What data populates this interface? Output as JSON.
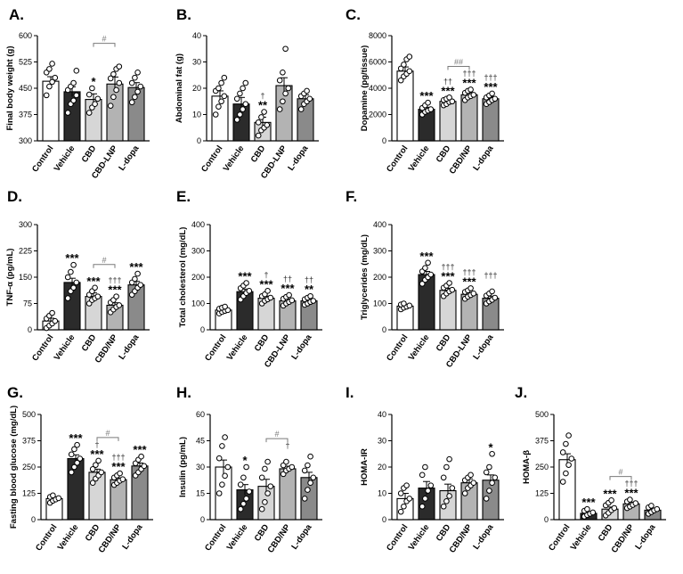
{
  "chart_data": [
    {
      "type": "bar",
      "panel_label": "A.",
      "ylabel": "Final body weight (g)",
      "ylim": [
        300,
        600
      ],
      "yticks": [
        "300",
        "375",
        "450",
        "525",
        "600"
      ],
      "categories": [
        "Control",
        "Vehicle",
        "CBD",
        "CBD-LNP",
        "L-dopa"
      ],
      "values": [
        470,
        440,
        418,
        462,
        452
      ],
      "errors": [
        13,
        14,
        16,
        20,
        14
      ],
      "points": [
        [
          430,
          455,
          468,
          480,
          495,
          505,
          520
        ],
        [
          380,
          405,
          415,
          430,
          445,
          455,
          465,
          500
        ],
        [
          380,
          395,
          405,
          420,
          432,
          450
        ],
        [
          400,
          425,
          445,
          465,
          478,
          490,
          505,
          512
        ],
        [
          410,
          425,
          440,
          455,
          465,
          480,
          495
        ]
      ],
      "annotations": [
        "",
        "",
        "*",
        "",
        ""
      ],
      "brackets": [
        {
          "from": 2,
          "to": 3,
          "label": "#"
        }
      ]
    },
    {
      "type": "bar",
      "panel_label": "B.",
      "ylabel": "Abdominal fat (g)",
      "ylim": [
        0,
        40
      ],
      "yticks": [
        "0",
        "10",
        "20",
        "30",
        "40"
      ],
      "categories": [
        "Control",
        "Vehicle",
        "CBD",
        "CBD-LNP",
        "L-dopa"
      ],
      "values": [
        17,
        14,
        7,
        21,
        16
      ],
      "errors": [
        2,
        2.5,
        2,
        3,
        1.5
      ],
      "points": [
        [
          10,
          13,
          15,
          17,
          19,
          20,
          22,
          24
        ],
        [
          8,
          10,
          12,
          14,
          16,
          18,
          20,
          22
        ],
        [
          2,
          4,
          5,
          6,
          7,
          9,
          11
        ],
        [
          12,
          15,
          18,
          20,
          23,
          26,
          35
        ],
        [
          12,
          14,
          15,
          16,
          17,
          18,
          19
        ]
      ],
      "annotations": [
        "",
        "",
        "**",
        "",
        ""
      ],
      "daggers": [
        "",
        "",
        "†",
        "",
        ""
      ],
      "brackets": []
    },
    {
      "type": "bar",
      "panel_label": "C.",
      "ylabel": "Dopamine (pg/tissue)",
      "ylim": [
        0,
        8000
      ],
      "yticks": [
        "0",
        "2000",
        "4000",
        "6000",
        "8000"
      ],
      "categories": [
        "Control",
        "Vehicle",
        "CBD",
        "CBD/NP",
        "L-dopa"
      ],
      "values": [
        5300,
        2400,
        3000,
        3500,
        3200
      ],
      "errors": [
        320,
        150,
        130,
        180,
        150
      ],
      "points": [
        [
          4600,
          4900,
          5100,
          5300,
          5500,
          5800,
          6200,
          6400
        ],
        [
          2000,
          2200,
          2300,
          2400,
          2500,
          2700,
          2900
        ],
        [
          2700,
          2800,
          2950,
          3000,
          3100,
          3200,
          3300
        ],
        [
          3100,
          3300,
          3400,
          3500,
          3650,
          3800,
          3900
        ],
        [
          2800,
          2950,
          3100,
          3200,
          3300,
          3450,
          3600
        ]
      ],
      "annotations": [
        "",
        "***",
        "***",
        "***",
        "***"
      ],
      "daggers": [
        "",
        "",
        "††",
        "†††",
        "†††"
      ],
      "brackets": [
        {
          "from": 2,
          "to": 3,
          "label": "##"
        }
      ]
    },
    {
      "type": "bar",
      "panel_label": "D.",
      "ylabel": "TNF-α (pg/mL)",
      "ylim": [
        0,
        300
      ],
      "yticks": [
        "0",
        "75",
        "150",
        "225",
        "300"
      ],
      "categories": [
        "Control",
        "Vehicle",
        "CBD",
        "CBD/NP",
        "L-dopa"
      ],
      "values": [
        25,
        135,
        95,
        70,
        128
      ],
      "errors": [
        8,
        12,
        10,
        7,
        10
      ],
      "points": [
        [
          5,
          12,
          18,
          25,
          32,
          40,
          48
        ],
        [
          90,
          110,
          120,
          135,
          150,
          165,
          185
        ],
        [
          75,
          85,
          90,
          95,
          100,
          110,
          120
        ],
        [
          50,
          58,
          65,
          70,
          78,
          85,
          95
        ],
        [
          100,
          110,
          120,
          128,
          135,
          145,
          160
        ]
      ],
      "annotations": [
        "",
        "***",
        "***",
        "***",
        "***"
      ],
      "daggers": [
        "",
        "",
        "",
        "†††",
        ""
      ],
      "brackets": [
        {
          "from": 2,
          "to": 3,
          "label": "#"
        }
      ]
    },
    {
      "type": "bar",
      "panel_label": "E.",
      "ylabel": "Total cholesterol (mg/dL)",
      "ylim": [
        0,
        400
      ],
      "yticks": [
        "0",
        "100",
        "200",
        "300",
        "400"
      ],
      "categories": [
        "Control",
        "Vehicle",
        "CBD",
        "CBD-LNP",
        "L-dopa"
      ],
      "values": [
        75,
        145,
        120,
        110,
        110
      ],
      "errors": [
        5,
        10,
        8,
        7,
        6
      ],
      "points": [
        [
          62,
          68,
          72,
          75,
          80,
          84,
          88
        ],
        [
          115,
          128,
          140,
          148,
          158,
          168,
          178
        ],
        [
          100,
          110,
          116,
          122,
          128,
          135,
          148
        ],
        [
          92,
          100,
          106,
          112,
          118,
          125,
          132
        ],
        [
          95,
          100,
          106,
          110,
          116,
          122,
          128
        ]
      ],
      "annotations": [
        "",
        "***",
        "***",
        "***",
        "**"
      ],
      "daggers": [
        "",
        "",
        "†",
        "††",
        "††"
      ],
      "brackets": []
    },
    {
      "type": "bar",
      "panel_label": "F.",
      "ylabel": "Triglycerides (mg/dL)",
      "ylim": [
        0,
        400
      ],
      "yticks": [
        "0",
        "100",
        "200",
        "300",
        "400"
      ],
      "categories": [
        "Control",
        "Vehicle",
        "CBD",
        "CBD-LNP",
        "L-dopa"
      ],
      "values": [
        90,
        210,
        150,
        135,
        120
      ],
      "errors": [
        4,
        12,
        8,
        6,
        8
      ],
      "points": [
        [
          78,
          84,
          88,
          92,
          96,
          100
        ],
        [
          175,
          190,
          200,
          210,
          222,
          235,
          255
        ],
        [
          128,
          138,
          146,
          152,
          160,
          168,
          178
        ],
        [
          118,
          126,
          132,
          138,
          144,
          150,
          158
        ],
        [
          100,
          108,
          114,
          122,
          130,
          138,
          146
        ]
      ],
      "annotations": [
        "",
        "***",
        "***",
        "***",
        ""
      ],
      "daggers": [
        "",
        "",
        "†††",
        "†††",
        "†††"
      ],
      "brackets": []
    },
    {
      "type": "bar",
      "panel_label": "G.",
      "ylabel": "Fasting blood glucose (mg/dL)",
      "ylim": [
        0,
        500
      ],
      "yticks": [
        "0",
        "125",
        "250",
        "375",
        "500"
      ],
      "categories": [
        "Control",
        "Vehicle",
        "CBD",
        "CBD/NP",
        "L-dopa"
      ],
      "values": [
        100,
        290,
        225,
        190,
        255
      ],
      "errors": [
        6,
        18,
        15,
        8,
        14
      ],
      "points": [
        [
          80,
          90,
          96,
          102,
          108,
          115
        ],
        [
          225,
          250,
          270,
          290,
          310,
          335,
          355
        ],
        [
          175,
          195,
          210,
          225,
          240,
          260,
          280
        ],
        [
          165,
          175,
          185,
          192,
          200,
          210,
          220
        ],
        [
          210,
          225,
          240,
          255,
          268,
          285,
          300
        ]
      ],
      "annotations": [
        "",
        "***",
        "***",
        "***",
        "***"
      ],
      "daggers": [
        "",
        "",
        "†",
        "†††",
        ""
      ],
      "brackets": [
        {
          "from": 2,
          "to": 3,
          "label": "#"
        }
      ]
    },
    {
      "type": "bar",
      "panel_label": "H.",
      "ylabel": "Insulin (pg/mL)",
      "ylim": [
        0,
        60
      ],
      "yticks": [
        "0",
        "15",
        "30",
        "45",
        "60"
      ],
      "categories": [
        "Control",
        "Vehicle",
        "CBD",
        "CBD/NP",
        "L-dopa"
      ],
      "values": [
        30,
        17,
        19,
        29,
        24
      ],
      "errors": [
        4,
        3,
        4,
        1.5,
        3
      ],
      "points": [
        [
          15,
          20,
          25,
          30,
          35,
          42,
          47
        ],
        [
          6,
          9,
          12,
          16,
          20,
          24,
          30
        ],
        [
          6,
          10,
          15,
          19,
          24,
          29,
          33
        ],
        [
          26,
          28,
          29,
          30,
          31,
          33
        ],
        [
          12,
          17,
          21,
          24,
          28,
          31,
          36
        ]
      ],
      "annotations": [
        "",
        "*",
        "",
        "",
        ""
      ],
      "daggers": [
        "",
        "",
        "",
        "†",
        ""
      ],
      "brackets": [
        {
          "from": 2,
          "to": 3,
          "label": "#"
        }
      ]
    },
    {
      "type": "bar",
      "panel_label": "I.",
      "ylabel": "HOMA-IR",
      "ylim": [
        0,
        40
      ],
      "yticks": [
        "0",
        "10",
        "20",
        "30",
        "40"
      ],
      "categories": [
        "Control",
        "Vehicle",
        "CBD",
        "CBD/NP",
        "L-dopa"
      ],
      "values": [
        8,
        12,
        11,
        14,
        15
      ],
      "errors": [
        2,
        2.5,
        2.5,
        1.5,
        2
      ],
      "points": [
        [
          3,
          5,
          7,
          8,
          10,
          12,
          13
        ],
        [
          5,
          8,
          11,
          13,
          17,
          20
        ],
        [
          5,
          7,
          9,
          12,
          16,
          20,
          23
        ],
        [
          10,
          12,
          13,
          14,
          15,
          16,
          17
        ],
        [
          8,
          11,
          14,
          16,
          18,
          20,
          25
        ]
      ],
      "annotations": [
        "",
        "",
        "",
        "",
        "*"
      ],
      "brackets": []
    },
    {
      "type": "bar",
      "panel_label": "J.",
      "ylabel": "HOMA-β",
      "ylim": [
        0,
        500
      ],
      "yticks": [
        "0",
        "125",
        "250",
        "375",
        "500"
      ],
      "categories": [
        "Control",
        "Vehicle",
        "CBD",
        "CBD/NP",
        "L-dopa"
      ],
      "values": [
        285,
        30,
        50,
        75,
        45
      ],
      "errors": [
        28,
        6,
        10,
        8,
        7
      ],
      "points": [
        [
          180,
          220,
          260,
          290,
          320,
          360,
          400
        ],
        [
          15,
          22,
          28,
          34,
          42,
          50
        ],
        [
          20,
          32,
          45,
          55,
          68,
          80,
          92
        ],
        [
          55,
          62,
          70,
          78,
          86,
          95
        ],
        [
          28,
          36,
          44,
          50,
          58,
          66
        ]
      ],
      "annotations": [
        "",
        "***",
        "***",
        "***",
        ""
      ],
      "daggers": [
        "",
        "",
        "",
        "†††",
        ""
      ],
      "brackets": [
        {
          "from": 2,
          "to": 3,
          "label": "#"
        }
      ]
    }
  ],
  "colors": {
    "fills": [
      "#ffffff",
      "#2b2b2b",
      "#d6d6d6",
      "#b3b3b3",
      "#8a8a8a"
    ],
    "axis": "#000000",
    "points": "#000000",
    "bracket": "#7a7a7a"
  }
}
